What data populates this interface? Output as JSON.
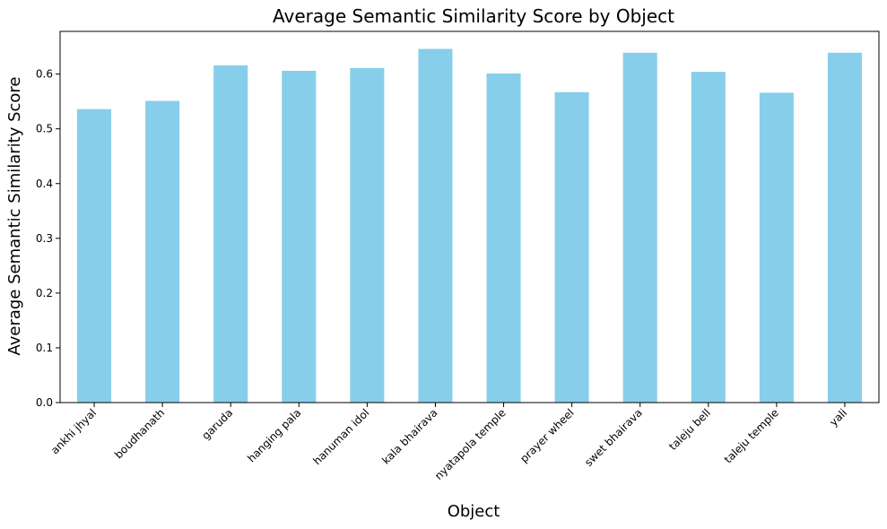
{
  "chart_data": {
    "type": "bar",
    "title": "Average Semantic Similarity Score by Object",
    "xlabel": "Object",
    "ylabel": "Average Semantic Similarity Score",
    "categories": [
      "ankhi jhyal",
      "boudhanath",
      "garuda",
      "hanging pala",
      "hanuman idol",
      "kala bhairava",
      "nyatapola temple",
      "prayer wheel",
      "swet bhairava",
      "taleju bell",
      "taleju temple",
      "yali"
    ],
    "values": [
      0.536,
      0.551,
      0.616,
      0.606,
      0.611,
      0.646,
      0.601,
      0.567,
      0.639,
      0.604,
      0.566,
      0.639
    ],
    "ylim": [
      0,
      0.678
    ],
    "yticks": [
      0.0,
      0.1,
      0.2,
      0.3,
      0.4,
      0.5,
      0.6
    ],
    "ytick_labels": [
      "0.0",
      "0.1",
      "0.2",
      "0.3",
      "0.4",
      "0.5",
      "0.6"
    ],
    "bar_color": "#87CEEB",
    "grid": false,
    "legend": "none"
  }
}
